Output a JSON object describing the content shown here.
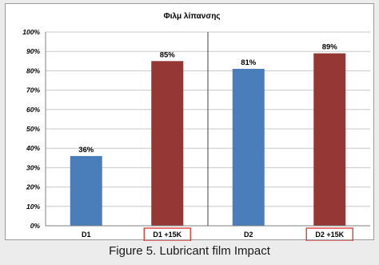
{
  "caption": "Figure 5. Lubricant film Impact",
  "chart_data": {
    "type": "bar",
    "title": "Φιλμ λίπανσης",
    "categories": [
      "D1",
      "D1 +15K",
      "D2",
      "D2 +15K"
    ],
    "values": [
      36,
      85,
      81,
      89
    ],
    "value_labels": [
      "36%",
      "85%",
      "81%",
      "89%"
    ],
    "ylim": [
      0,
      100
    ],
    "y_ticks": [
      0,
      10,
      20,
      30,
      40,
      50,
      60,
      70,
      80,
      90,
      100
    ],
    "y_tick_labels": [
      "0%",
      "10%",
      "20%",
      "30%",
      "40%",
      "50%",
      "60%",
      "70%",
      "80%",
      "90%",
      "100%"
    ],
    "xlabel": "",
    "ylabel": "",
    "grid": true,
    "bar_colors": [
      "#4a7ebb",
      "#953735",
      "#4a7ebb",
      "#953735"
    ],
    "highlighted_categories": [
      "D1 +15K",
      "D2 +15K"
    ],
    "highlight_color": "#e03030",
    "group_divider_after": "D1 +15K"
  }
}
